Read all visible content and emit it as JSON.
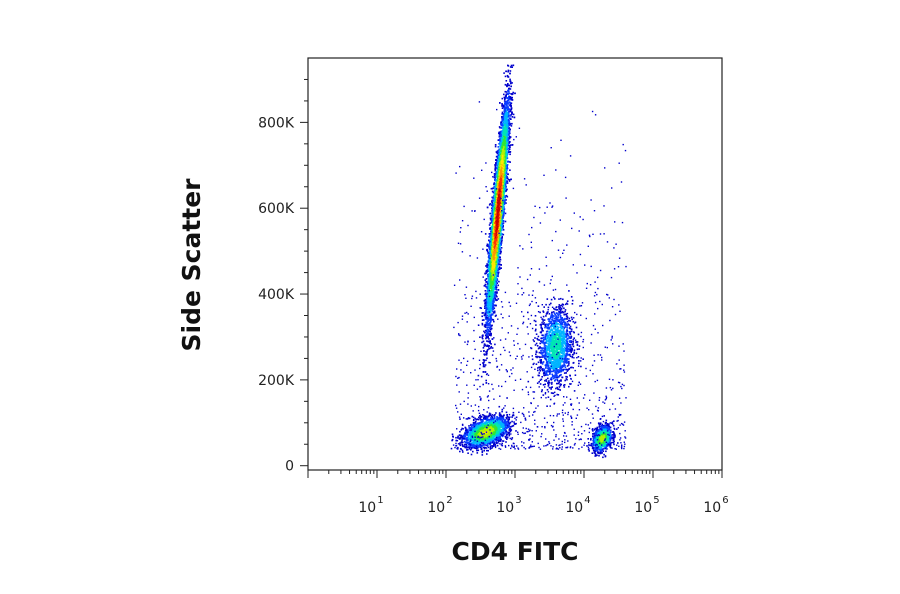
{
  "chart_data": {
    "type": "scatter",
    "subtype": "flow-cytometry-density-dot-plot",
    "xlabel": "CD4 FITC",
    "ylabel": "Side Scatter",
    "x_scale": "log",
    "xlim": [
      1,
      1000000
    ],
    "x_ticks": [
      {
        "value": 10,
        "base": "10",
        "exp": "1"
      },
      {
        "value": 100,
        "base": "10",
        "exp": "2"
      },
      {
        "value": 1000,
        "base": "10",
        "exp": "3"
      },
      {
        "value": 10000,
        "base": "10",
        "exp": "4"
      },
      {
        "value": 100000,
        "base": "10",
        "exp": "5"
      },
      {
        "value": 1000000,
        "base": "10",
        "exp": "6"
      }
    ],
    "y_scale": "linear",
    "ylim": [
      -10000,
      950000
    ],
    "y_ticks": [
      {
        "value": 0,
        "label": "0"
      },
      {
        "value": 200000,
        "label": "200K"
      },
      {
        "value": 400000,
        "label": "400K"
      },
      {
        "value": 600000,
        "label": "600K"
      },
      {
        "value": 800000,
        "label": "800K"
      }
    ],
    "grid": false,
    "legend": "none",
    "color_map": [
      "#0000cc",
      "#0a3cff",
      "#00b4ff",
      "#00e6b4",
      "#32e632",
      "#b4f000",
      "#ffe600",
      "#ff9600",
      "#ff3200",
      "#c80000"
    ],
    "populations": [
      {
        "center_x": 550,
        "center_y": 590000,
        "spread_log_x": 0.075,
        "spread_y": 120000,
        "covariance": 0.86,
        "events": 9000,
        "peak_density": 1.0
      },
      {
        "center_x": 370,
        "center_y": 80000,
        "spread_log_x": 0.16,
        "spread_y": 17000,
        "covariance": 0.45,
        "events": 2200,
        "peak_density": 0.55
      },
      {
        "center_x": 3800,
        "center_y": 280000,
        "spread_log_x": 0.12,
        "spread_y": 45000,
        "covariance": 0.1,
        "events": 1500,
        "peak_density": 0.28
      },
      {
        "center_x": 18000,
        "center_y": 65000,
        "spread_log_x": 0.07,
        "spread_y": 15000,
        "covariance": 0.3,
        "events": 900,
        "peak_density": 0.5
      }
    ]
  }
}
